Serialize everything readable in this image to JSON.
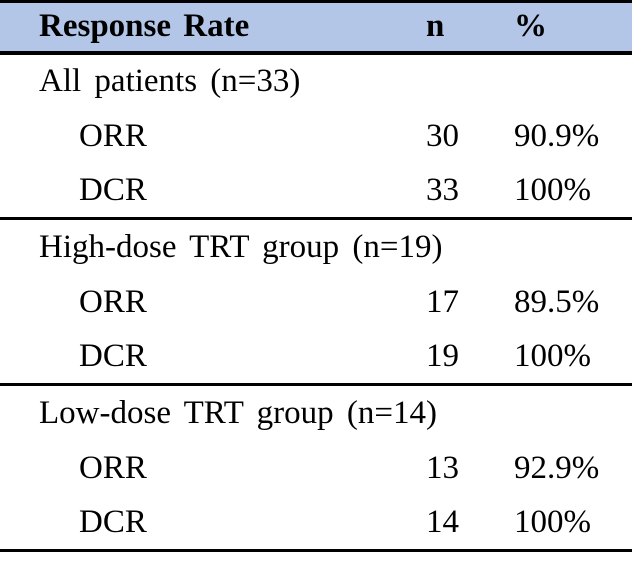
{
  "table": {
    "title": "Response Rate",
    "columns": {
      "label": "Response Rate",
      "n": "n",
      "pct": "%"
    },
    "colors": {
      "header_bg": "#B4C6E7",
      "line_color": "#000000",
      "text_color": "#000000",
      "page_bg": "#FFFFFF"
    },
    "sections": [
      {
        "group": "All patients (n=33)",
        "rows": [
          {
            "label": "ORR",
            "n": "30",
            "pct": "90.9%"
          },
          {
            "label": "DCR",
            "n": "33",
            "pct": "100%"
          }
        ]
      },
      {
        "group": "High-dose TRT group (n=19)",
        "rows": [
          {
            "label": "ORR",
            "n": "17",
            "pct": "89.5%"
          },
          {
            "label": "DCR",
            "n": "19",
            "pct": "100%"
          }
        ]
      },
      {
        "group": "Low-dose TRT group (n=14)",
        "rows": [
          {
            "label": "ORR",
            "n": "13",
            "pct": "92.9%"
          },
          {
            "label": "DCR",
            "n": "14",
            "pct": "100%"
          }
        ]
      }
    ]
  },
  "chart_data": {
    "type": "table",
    "title": "Response Rate",
    "column_headers": [
      "Response Rate",
      "n",
      "%"
    ],
    "groups": [
      {
        "name": "All patients (n=33)",
        "total_n": 33,
        "rows": [
          {
            "measure": "ORR",
            "n": 30,
            "percent": "90.9%"
          },
          {
            "measure": "DCR",
            "n": 33,
            "percent": "100%"
          }
        ]
      },
      {
        "name": "High-dose TRT group (n=19)",
        "total_n": 19,
        "rows": [
          {
            "measure": "ORR",
            "n": 17,
            "percent": "89.5%"
          },
          {
            "measure": "DCR",
            "n": 19,
            "percent": "100%"
          }
        ]
      },
      {
        "name": "Low-dose TRT group (n=14)",
        "total_n": 14,
        "rows": [
          {
            "measure": "ORR",
            "n": 13,
            "percent": "92.9%"
          },
          {
            "measure": "DCR",
            "n": 14,
            "percent": "100%"
          }
        ]
      }
    ]
  }
}
